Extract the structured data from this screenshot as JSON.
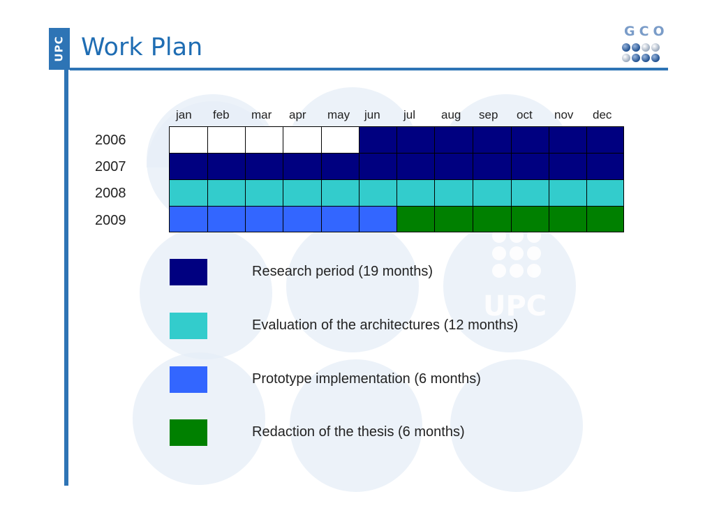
{
  "slide": {
    "title": "Work Plan",
    "side_tag": "UPC",
    "logo_text": "GCO",
    "watermark_text": "UPC"
  },
  "gantt": {
    "months": [
      "jan",
      "feb",
      "mar",
      "apr",
      "may",
      "jun",
      "jul",
      "aug",
      "sep",
      "oct",
      "nov",
      "dec"
    ],
    "years": [
      "2006",
      "2007",
      "2008",
      "2009"
    ],
    "phases": {
      "research": "#000080",
      "evaluation": "#33cccc",
      "prototype": "#3366ff",
      "redaction": "#008000"
    },
    "rows": [
      [
        "none",
        "none",
        "none",
        "none",
        "none",
        "research",
        "research",
        "research",
        "research",
        "research",
        "research",
        "research"
      ],
      [
        "research",
        "research",
        "research",
        "research",
        "research",
        "research",
        "research",
        "research",
        "research",
        "research",
        "research",
        "research"
      ],
      [
        "evaluation",
        "evaluation",
        "evaluation",
        "evaluation",
        "evaluation",
        "evaluation",
        "evaluation",
        "evaluation",
        "evaluation",
        "evaluation",
        "evaluation",
        "evaluation"
      ],
      [
        "prototype",
        "prototype",
        "prototype",
        "prototype",
        "prototype",
        "prototype",
        "redaction",
        "redaction",
        "redaction",
        "redaction",
        "redaction",
        "redaction"
      ]
    ]
  },
  "legend": [
    {
      "phase": "research",
      "color": "#000080",
      "label": "Research period (19 months)"
    },
    {
      "phase": "evaluation",
      "color": "#33cccc",
      "label": "Evaluation of the architectures (12 months)"
    },
    {
      "phase": "prototype",
      "color": "#3366ff",
      "label": "Prototype implementation (6 months)"
    },
    {
      "phase": "redaction",
      "color": "#008000",
      "label": "Redaction of the thesis (6 months)"
    }
  ]
}
